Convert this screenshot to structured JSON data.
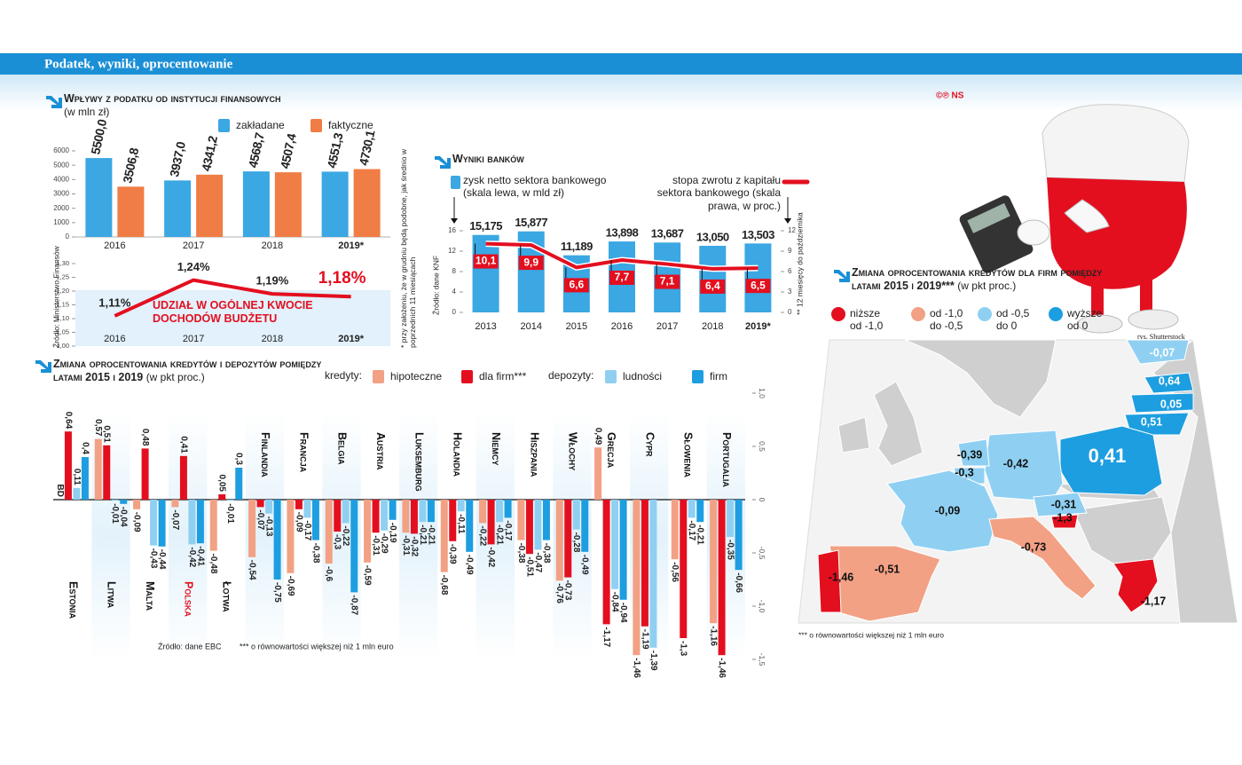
{
  "header": {
    "title": "Podatek, wyniki, oprocentowanie",
    "credit": "©℗ NS",
    "illustration_credit": "rys. Shutterstock"
  },
  "chart_data": [
    {
      "type": "bar",
      "title": "Wpływy z podatku od instytucji finansowych",
      "subtitle": "(w mln zł)",
      "categories": [
        "2016",
        "2017",
        "2018",
        "2019*"
      ],
      "series": [
        {
          "name": "zakładane",
          "color": "#3ba7e3",
          "values": [
            5500.0,
            3937.0,
            4568.7,
            4551.3
          ],
          "value_labels": [
            "5500,0",
            "3937,0",
            "4568,7",
            "4551,3"
          ]
        },
        {
          "name": "faktyczne",
          "color": "#f07d45",
          "values": [
            3506.8,
            4341.2,
            4507.4,
            4730.1
          ],
          "value_labels": [
            "3506,8",
            "4341,2",
            "4507,4",
            "4730,1"
          ]
        }
      ],
      "ylim": [
        0,
        6000
      ],
      "yticks": [
        0,
        1000,
        2000,
        3000,
        4000,
        5000,
        6000
      ]
    },
    {
      "type": "line",
      "annotation": "UDZIAŁ W OGÓLNEJ KWOCIE DOCHODÓW BUDŻETU",
      "categories": [
        "2016",
        "2017",
        "2018",
        "2019*"
      ],
      "values": [
        1.11,
        1.24,
        1.19,
        1.18
      ],
      "value_labels": [
        "1,11%",
        "1,24%",
        "1,19%",
        "1,18%"
      ],
      "color": "#e30f1f",
      "ylim": [
        1.0,
        1.3
      ],
      "yticks": [
        {
          "value": 1.0,
          "label": "1,00"
        },
        {
          "value": 1.05,
          "label": "1,05"
        },
        {
          "value": 1.1,
          "label": "1,10"
        },
        {
          "value": 1.15,
          "label": "1,15"
        },
        {
          "value": 1.2,
          "label": "1,20"
        },
        {
          "value": 1.25,
          "label": "1,25"
        },
        {
          "value": 1.3,
          "label": "1,30"
        }
      ],
      "source": "Źródło: Ministerstwo Finansów",
      "note": "* przy założeniu, że w grudniu będą podobne, jak średnio w poprzednich 11 miesiącach"
    },
    {
      "type": "combo",
      "title": "Wyniki banków",
      "categories": [
        "2013",
        "2014",
        "2015",
        "2016",
        "2017",
        "2018",
        "2019*"
      ],
      "series": [
        {
          "name": "zysk netto sektora bankowego (skala lewa, w mld zł)",
          "color": "#3ba7e3",
          "values": [
            15.175,
            15.877,
            11.189,
            13.898,
            13.687,
            13.05,
            13.503
          ],
          "value_labels": [
            "15,175",
            "15,877",
            "11,189",
            "13,898",
            "13,687",
            "13,050",
            "13,503"
          ]
        },
        {
          "name": "stopa zwrotu z kapitału sektora bankowego (skala prawa, w proc.)",
          "color": "#e30f1f",
          "axis": "y2",
          "values": [
            10.1,
            9.9,
            6.6,
            7.7,
            7.1,
            6.4,
            6.5
          ],
          "value_labels": [
            "10,1",
            "9,9",
            "6,6",
            "7,7",
            "7,1",
            "6,4",
            "6,5"
          ]
        }
      ],
      "ylim": [
        0,
        16
      ],
      "yticks": [
        0,
        4,
        8,
        12,
        16
      ],
      "y2lim": [
        0,
        12
      ],
      "y2ticks": [
        0,
        3,
        6,
        9,
        12
      ],
      "source": "Źródło: dane KNF",
      "note": "** 12 miesięcy do października"
    },
    {
      "type": "bar",
      "title": "Zmiana oprocentowania kredytów i depozytów pomiędzy latami 2015 i 2019",
      "subtitle": "(w pkt proc.)",
      "legend_groups": [
        "kredyty:",
        "depozyty:"
      ],
      "categories": [
        "Estonia",
        "Litwa",
        "Malta",
        "Polska",
        "Łotwa",
        "Finlandia",
        "Francja",
        "Belgia",
        "Austria",
        "Luksemburg",
        "Holandia",
        "Niemcy",
        "Hiszpania",
        "Włochy",
        "Grecja",
        "Cypr",
        "Słowenia",
        "Portugalia"
      ],
      "highlight": "Polska",
      "highlight_color": "#e30f1f",
      "series": [
        {
          "name": "hipoteczne",
          "color": "#f2a184",
          "values": [
            null,
            0.57,
            -0.09,
            -0.07,
            -0.48,
            -0.54,
            -0.69,
            -0.6,
            -0.59,
            -0.31,
            -0.68,
            -0.22,
            -0.38,
            -0.76,
            0.49,
            -1.46,
            -0.56,
            -1.16
          ],
          "value_labels": [
            "BD",
            "0,57",
            "-0,09",
            "-0,07",
            "-0,48",
            "-0,54",
            "-0,69",
            "-0,6",
            "-0,59",
            "-0,31",
            "-0,68",
            "-0,22",
            "-0,38",
            "-0,76",
            "0,49",
            "-1,46",
            "-0,56",
            "-1,16"
          ]
        },
        {
          "name": "dla firm***",
          "color": "#e30f1f",
          "values": [
            0.64,
            0.51,
            0.48,
            0.41,
            0.05,
            -0.07,
            -0.09,
            -0.3,
            -0.31,
            -0.32,
            -0.39,
            -0.42,
            -0.51,
            -0.73,
            -1.17,
            -1.19,
            -1.3,
            -1.46
          ],
          "value_labels": [
            "0,64",
            "0,51",
            "0,48",
            "0,41",
            "0,05",
            "-0,07",
            "-0,09",
            "-0,3",
            "-0,31",
            "-0,32",
            "-0,39",
            "-0,42",
            "-0,51",
            "-0,73",
            "-1,17",
            "-1,19",
            "-1,3",
            "-1,46"
          ]
        },
        {
          "name": "ludności",
          "color": "#8fd0f2",
          "values": [
            0.11,
            -0.01,
            -0.43,
            -0.42,
            -0.01,
            -0.13,
            -0.17,
            -0.22,
            -0.29,
            -0.21,
            -0.11,
            -0.21,
            -0.47,
            -0.28,
            -0.84,
            -1.39,
            -0.17,
            -0.35
          ],
          "value_labels": [
            "0,11",
            "-0,01",
            "-0,43",
            "-0,42",
            "-0,01",
            "-0,13",
            "-0,17",
            "-0,22",
            "-0,29",
            "-0,21",
            "-0,11",
            "-0,21",
            "-0,47",
            "-0,28",
            "-0,84",
            "-1,39",
            "-0,17",
            "-0,35"
          ]
        },
        {
          "name": "firm",
          "color": "#1d9ee0",
          "values": [
            0.4,
            -0.04,
            -0.44,
            -0.41,
            0.3,
            -0.75,
            -0.38,
            -0.87,
            -0.19,
            -0.21,
            -0.49,
            -0.17,
            -0.38,
            -0.49,
            -0.94,
            null,
            -0.21,
            -0.66
          ],
          "value_labels": [
            "0,4",
            "-0,04",
            "-0,44",
            "-0,41",
            "0,3",
            "-0,75",
            "-0,38",
            "-0,87",
            "-0,19",
            "-0,21",
            "-0,49",
            "-0,17",
            "-0,38",
            "-0,49",
            "-0,94",
            null,
            "-0,21",
            "-0,66"
          ]
        }
      ],
      "ylim": [
        -1.5,
        1.0
      ],
      "yticks": [
        {
          "value": 1.0,
          "label": "1,0"
        },
        {
          "value": 0.5,
          "label": "0,5"
        },
        0,
        {
          "value": -0.5,
          "label": "-0,5"
        },
        {
          "value": -1.0,
          "label": "-1,0"
        },
        {
          "value": -1.5,
          "label": "-1,5"
        }
      ],
      "source": "Źródło: dane EBC",
      "note": "*** o równowartości większej niż 1 mln euro"
    }
  ],
  "map": {
    "title": "Zmiana oprocentowania kredytów dla firm pomiędzy latami 2015 i 2019***",
    "subtitle": "(w pkt proc.)",
    "legend": [
      {
        "color": "#e30f1f",
        "label": [
          "niższe",
          "od -1,0"
        ]
      },
      {
        "color": "#f2a184",
        "label": [
          "od -1,0",
          "do -0,5"
        ]
      },
      {
        "color": "#8fd0f2",
        "label": [
          "od -0,5",
          "do 0"
        ]
      },
      {
        "color": "#1d9ee0",
        "label": [
          "wyższe",
          "od 0"
        ]
      }
    ],
    "labels": [
      "-0,07",
      "0,64",
      "0,05",
      "0,51",
      "0,41",
      "-0,42",
      "-0,39",
      "-0,3",
      "-0,09",
      "-0,31",
      "-1,3",
      "-0,73",
      "-0,51",
      "-1,46",
      "-1,17"
    ],
    "note": "*** o równowartości większej niż 1 mln euro"
  }
}
